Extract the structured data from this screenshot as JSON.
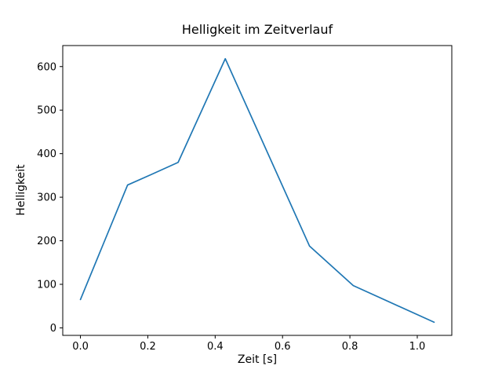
{
  "chart_data": {
    "type": "line",
    "title": "Helligkeit im Zeitverlauf",
    "xlabel": "Zeit [s]",
    "ylabel": "Helligkeit",
    "x": [
      0.0,
      0.14,
      0.21,
      0.29,
      0.43,
      0.68,
      0.81,
      1.05
    ],
    "y": [
      65,
      328,
      352,
      380,
      618,
      188,
      97,
      13
    ],
    "xlim": [
      -0.0525,
      1.1025
    ],
    "ylim": [
      -17.25,
      648.25
    ],
    "xticks": [
      0.0,
      0.2,
      0.4,
      0.6,
      0.8,
      1.0
    ],
    "xtick_labels": [
      "0.0",
      "0.2",
      "0.4",
      "0.6",
      "0.8",
      "1.0"
    ],
    "yticks": [
      0,
      100,
      200,
      300,
      400,
      500,
      600
    ],
    "ytick_labels": [
      "0",
      "100",
      "200",
      "300",
      "400",
      "500",
      "600"
    ],
    "line_color": "#1f77b4",
    "spine_color": "#000000",
    "grid": false,
    "legend_position": "none"
  }
}
